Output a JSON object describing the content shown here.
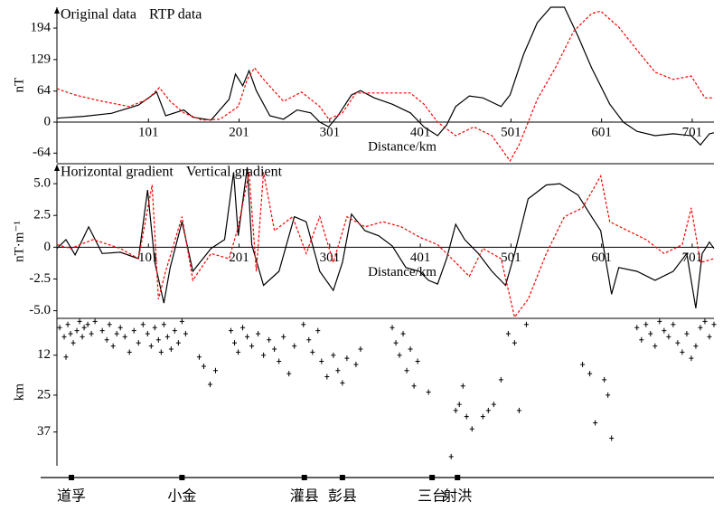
{
  "chart_data": [
    {
      "type": "line",
      "ylabel": "nT",
      "xlabel": "Distance/km",
      "xlim": [
        0,
        725
      ],
      "xticks": [
        101,
        201,
        301,
        401,
        501,
        601,
        701
      ],
      "ylim": [
        -84,
        237
      ],
      "yticks": [
        -64,
        0,
        64,
        129,
        194
      ],
      "series": [
        {
          "name": "Original data",
          "color": "#000000",
          "linestyle": "solid",
          "x": [
            0,
            30,
            60,
            90,
            101,
            110,
            120,
            140,
            150,
            170,
            190,
            197,
            205,
            212,
            220,
            235,
            250,
            265,
            280,
            290,
            300,
            310,
            325,
            335,
            350,
            370,
            390,
            405,
            420,
            430,
            440,
            455,
            470,
            490,
            500,
            515,
            530,
            545,
            560,
            575,
            590,
            610,
            625,
            640,
            660,
            680,
            700,
            710,
            720,
            725
          ],
          "values": [
            8,
            12,
            18,
            35,
            50,
            62,
            13,
            25,
            10,
            4,
            47,
            99,
            75,
            106,
            65,
            13,
            6,
            25,
            19,
            0,
            -10,
            13,
            56,
            65,
            50,
            37,
            19,
            -10,
            -28,
            -6,
            32,
            54,
            50,
            32,
            56,
            140,
            205,
            237,
            237,
            177,
            112,
            37,
            0,
            -19,
            -28,
            -24,
            -28,
            -47,
            -24,
            -22
          ]
        },
        {
          "name": "RTP data",
          "color": "#ff0000",
          "linestyle": "dashed",
          "x": [
            0,
            20,
            50,
            80,
            100,
            113,
            125,
            140,
            160,
            180,
            200,
            210,
            218,
            230,
            250,
            270,
            290,
            300,
            315,
            330,
            360,
            390,
            405,
            420,
            440,
            460,
            480,
            500,
            510,
            530,
            550,
            570,
            590,
            600,
            620,
            640,
            660,
            680,
            700,
            715,
            725
          ],
          "values": [
            69,
            56,
            43,
            32,
            47,
            71,
            43,
            19,
            4,
            6,
            32,
            88,
            112,
            84,
            43,
            62,
            32,
            6,
            19,
            60,
            60,
            60,
            37,
            0,
            -28,
            -10,
            -28,
            -80,
            -47,
            47,
            112,
            187,
            224,
            229,
            196,
            149,
            103,
            88,
            95,
            50,
            50
          ]
        }
      ]
    },
    {
      "type": "line",
      "ylabel": "nT·m⁻¹",
      "xlabel": "Distance/km",
      "xlim": [
        0,
        725
      ],
      "xticks": [
        101,
        201,
        301,
        401,
        501,
        601,
        701
      ],
      "ylim": [
        -5.6,
        6.5
      ],
      "yticks": [
        {
          "value": -5,
          "label": "-5.0"
        },
        -2.5,
        0,
        2.5,
        {
          "value": 5,
          "label": "5.0"
        }
      ],
      "series": [
        {
          "name": "Horizontal gradient",
          "color": "#000000",
          "linestyle": "solid",
          "x": [
            0,
            10,
            20,
            35,
            50,
            70,
            90,
            100,
            108,
            118,
            125,
            138,
            150,
            170,
            185,
            195,
            200,
            210,
            215,
            228,
            245,
            262,
            275,
            290,
            305,
            315,
            325,
            340,
            355,
            370,
            385,
            400,
            410,
            420,
            430,
            440,
            450,
            465,
            480,
            495,
            505,
            520,
            540,
            555,
            575,
            590,
            600,
            612,
            620,
            640,
            660,
            680,
            695,
            705,
            712,
            720,
            725
          ],
          "values": [
            -0.1,
            0.6,
            -0.6,
            1.6,
            -0.5,
            -0.4,
            -0.9,
            4.5,
            -1.2,
            -4.4,
            -1.6,
            2.0,
            -1.9,
            -0.1,
            0.6,
            5.9,
            0.9,
            6.3,
            0.2,
            -3.0,
            -1.9,
            2.4,
            2.0,
            -1.9,
            -3.4,
            -1.2,
            2.6,
            1.3,
            0.9,
            0.1,
            -1.6,
            -1.9,
            -2.6,
            -2.9,
            -0.9,
            1.8,
            0.6,
            -0.5,
            -1.9,
            -3.0,
            -0.5,
            3.8,
            4.9,
            5.0,
            4.1,
            2.4,
            1.3,
            -3.7,
            -1.6,
            -1.9,
            -2.6,
            -1.9,
            -0.5,
            -4.8,
            -0.5,
            0.4,
            -0.1
          ]
        },
        {
          "name": "Vertical gradient",
          "color": "#ff0000",
          "linestyle": "dashed",
          "x": [
            0,
            15,
            40,
            70,
            90,
            105,
            112,
            120,
            138,
            150,
            170,
            190,
            200,
            212,
            220,
            228,
            240,
            260,
            275,
            290,
            305,
            320,
            340,
            360,
            380,
            400,
            420,
            440,
            455,
            470,
            490,
            505,
            520,
            540,
            560,
            580,
            600,
            610,
            630,
            650,
            670,
            690,
            700,
            710,
            725
          ],
          "values": [
            0.2,
            -0.1,
            0.6,
            -0.1,
            -0.9,
            4.9,
            -4.1,
            -1.9,
            2.4,
            -2.6,
            -0.5,
            -0.9,
            1.6,
            5.9,
            -1.9,
            5.9,
            1.3,
            2.4,
            -0.5,
            2.4,
            -1.2,
            2.4,
            1.6,
            2.0,
            1.6,
            0.8,
            0.2,
            -1.2,
            -2.3,
            -0.1,
            -0.9,
            -5.5,
            -4.1,
            -0.5,
            2.4,
            3.1,
            5.6,
            2.0,
            1.3,
            0.6,
            -0.5,
            0.2,
            3.1,
            -1.2,
            -0.9
          ]
        }
      ]
    },
    {
      "type": "scatter",
      "ylabel": "km",
      "xlim": [
        0,
        725
      ],
      "ylim": [
        48,
        0
      ],
      "yticks": [
        12,
        25,
        37
      ],
      "color": "#000000",
      "x": [
        3,
        8,
        12,
        15,
        18,
        10,
        22,
        25,
        28,
        30,
        34,
        38,
        42,
        50,
        55,
        58,
        62,
        66,
        70,
        75,
        80,
        85,
        90,
        95,
        100,
        104,
        108,
        112,
        115,
        118,
        122,
        126,
        130,
        134,
        138,
        142,
        157,
        162,
        169,
        175,
        192,
        196,
        200,
        205,
        210,
        215,
        222,
        228,
        234,
        240,
        245,
        250,
        256,
        262,
        272,
        278,
        282,
        288,
        292,
        298,
        305,
        310,
        315,
        320,
        330,
        335,
        370,
        374,
        378,
        382,
        386,
        390,
        394,
        398,
        410,
        435,
        440,
        444,
        448,
        452,
        458,
        470,
        476,
        482,
        490,
        498,
        505,
        510,
        518,
        580,
        588,
        594,
        604,
        608,
        612,
        640,
        645,
        650,
        655,
        660,
        665,
        670,
        675,
        680,
        685,
        690,
        695,
        700,
        705,
        710,
        715,
        720,
        725
      ],
      "y": [
        3,
        6,
        2,
        5,
        8,
        12.6,
        4,
        1,
        6,
        3,
        2,
        5,
        1,
        4,
        7,
        2,
        9,
        5,
        3,
        6,
        11,
        4,
        8,
        2,
        5,
        9,
        3,
        7,
        11,
        2,
        6,
        10,
        4,
        8,
        1,
        5,
        12.6,
        15.6,
        21.5,
        17,
        4,
        8,
        11,
        3,
        6,
        9,
        5,
        12,
        7,
        10,
        14,
        6,
        18,
        9,
        2,
        7,
        11,
        4,
        14,
        19,
        12,
        17,
        21,
        13,
        15,
        10,
        3,
        8,
        12,
        5,
        17,
        10,
        22,
        14,
        24,
        45,
        30,
        28,
        22,
        32,
        36,
        32,
        30,
        28,
        20,
        5,
        8,
        30,
        2,
        15,
        18,
        34,
        20,
        25,
        39,
        3,
        7,
        2,
        5,
        9,
        1,
        4,
        6,
        2,
        8,
        11,
        5,
        13,
        9,
        3,
        1,
        6,
        2
      ]
    },
    {
      "type": "stations",
      "xlim": [
        0,
        725
      ],
      "categories": [
        "道孚",
        "小金",
        "灌县",
        "彭县",
        "三台",
        "射洪"
      ],
      "x": [
        16,
        138,
        273,
        315,
        414,
        442
      ]
    }
  ]
}
